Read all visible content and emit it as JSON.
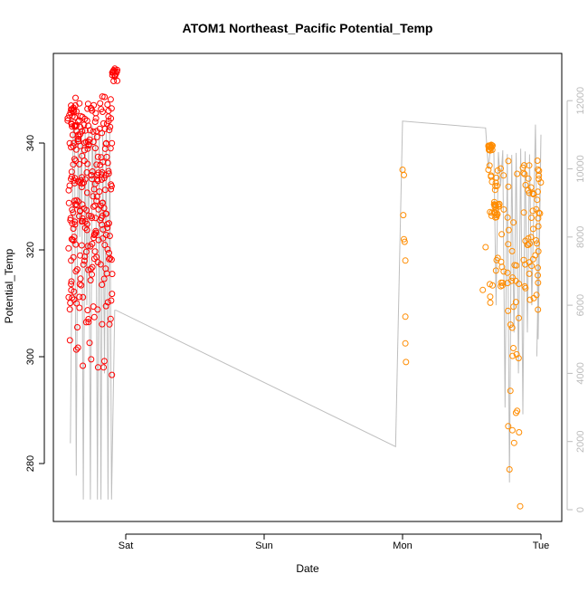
{
  "chart_data": {
    "type": "scatter",
    "title": "ATOM1 Northeast_Pacific Potential_Temp",
    "xlabel": "Date",
    "ylabel": "Potential_Temp",
    "x_axis": {
      "unit": "days",
      "range": [
        -0.45,
        3.1
      ],
      "ticks": [
        {
          "value": 0,
          "label": "Sat"
        },
        {
          "value": 1,
          "label": "Sun"
        },
        {
          "value": 2,
          "label": "Mon"
        },
        {
          "value": 3,
          "label": "Tue"
        }
      ]
    },
    "y_axis_left": {
      "label": "Potential_Temp",
      "range": [
        269.5,
        357.5
      ],
      "ticks": [
        280,
        300,
        320,
        340
      ]
    },
    "y_axis_right": {
      "range": [
        -300,
        12900
      ],
      "ticks": [
        0,
        2000,
        4000,
        6000,
        8000,
        10000,
        12000
      ],
      "color": "#bbbbbb"
    },
    "colors": {
      "segment1": "#ff0000",
      "segment2": "#ff8c00",
      "track": "#bebebe",
      "axis": "#000000"
    },
    "series": [
      {
        "color": "#ff0000",
        "x_range": [
          -0.4,
          -0.08
        ],
        "y_min": 296.5,
        "y_max": 353.5,
        "cast_count": 10,
        "samples": [
          {
            "x": -0.39,
            "y": 343.5
          },
          {
            "x": -0.385,
            "y": 345.0
          },
          {
            "x": -0.38,
            "y": 346.0
          },
          {
            "x": -0.375,
            "y": 340.0
          },
          {
            "x": -0.37,
            "y": 337.0
          },
          {
            "x": -0.375,
            "y": 333.0
          },
          {
            "x": -0.38,
            "y": 327.0
          },
          {
            "x": -0.39,
            "y": 322.0
          },
          {
            "x": -0.395,
            "y": 318.0
          },
          {
            "x": -0.36,
            "y": 316.0
          },
          {
            "x": -0.355,
            "y": 310.0
          },
          {
            "x": -0.35,
            "y": 305.5
          },
          {
            "x": -0.345,
            "y": 301.7
          },
          {
            "x": -0.31,
            "y": 298.3
          },
          {
            "x": -0.25,
            "y": 299.5
          },
          {
            "x": -0.2,
            "y": 298.0
          },
          {
            "x": -0.16,
            "y": 298.0
          },
          {
            "x": -0.1,
            "y": 296.6
          },
          {
            "x": -0.09,
            "y": 353.5
          },
          {
            "x": -0.07,
            "y": 353.0
          }
        ]
      },
      {
        "color": "#ff8c00",
        "x_range": [
          2.0,
          3.0
        ],
        "y_min": 272.0,
        "y_max": 340.0,
        "samples": [
          {
            "x": 2.0,
            "y": 335.0
          },
          {
            "x": 2.01,
            "y": 334.0
          },
          {
            "x": 2.005,
            "y": 326.5
          },
          {
            "x": 2.01,
            "y": 322.0
          },
          {
            "x": 2.015,
            "y": 321.5
          },
          {
            "x": 2.02,
            "y": 318.0
          },
          {
            "x": 2.02,
            "y": 307.5
          },
          {
            "x": 2.02,
            "y": 302.5
          },
          {
            "x": 2.025,
            "y": 299.0
          },
          {
            "x": 2.65,
            "y": 339.5
          },
          {
            "x": 2.62,
            "y": 335.0
          },
          {
            "x": 2.6,
            "y": 320.5
          },
          {
            "x": 2.58,
            "y": 312.5
          },
          {
            "x": 2.78,
            "y": 306.0
          },
          {
            "x": 2.85,
            "y": 272.0
          }
        ]
      }
    ],
    "track": {
      "color": "#bebebe",
      "axis": "right",
      "description_points": [
        {
          "x": -0.4,
          "y": 1950
        },
        {
          "x": -0.38,
          "y": 11200
        },
        {
          "x": -0.1,
          "y": 11300
        },
        {
          "x": -0.07,
          "y": 5850
        },
        {
          "x": 1.95,
          "y": 1850
        },
        {
          "x": 2.0,
          "y": 11400
        },
        {
          "x": 2.6,
          "y": 11200
        },
        {
          "x": 3.0,
          "y": 11000
        }
      ]
    }
  }
}
